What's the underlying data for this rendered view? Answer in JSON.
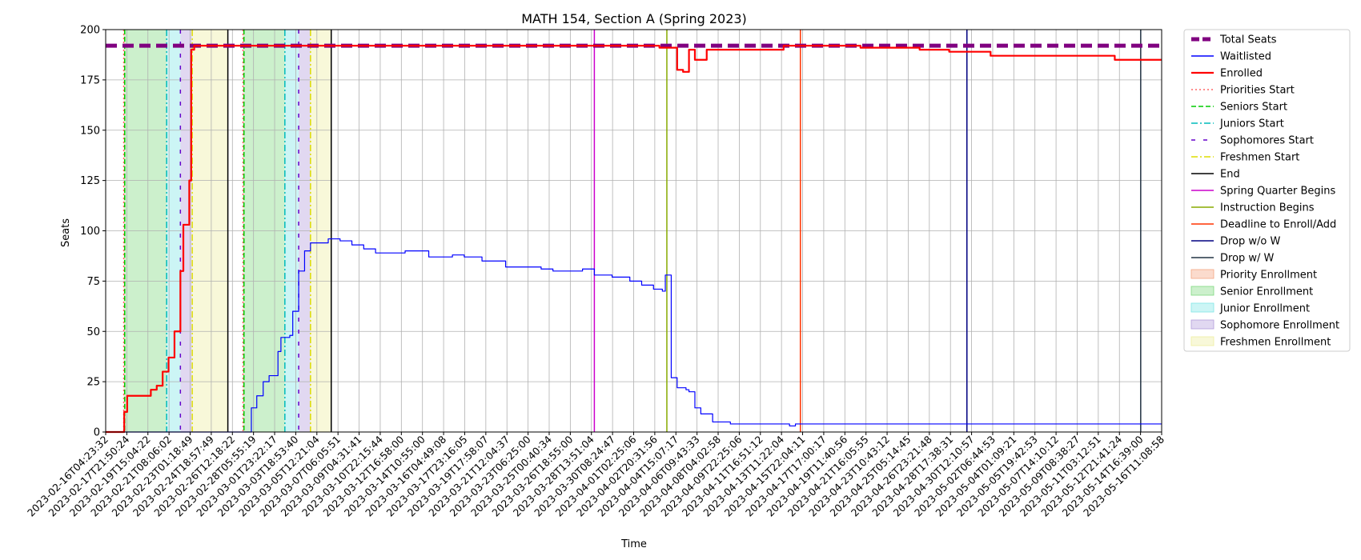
{
  "chart_data": {
    "type": "line",
    "title": "MATH 154, Section A (Spring 2023)",
    "xlabel": "Time",
    "ylabel": "Seats",
    "ylim": [
      0,
      200
    ],
    "yticks": [
      0,
      25,
      50,
      75,
      100,
      125,
      150,
      175,
      200
    ],
    "xlim": [
      "2023-02-16T04:23:32",
      "2023-05-16T11:08:58"
    ],
    "xtick_labels": [
      "2023-02-16T04:23:32",
      "2023-02-17T21:50:24",
      "2023-02-19T15:04:22",
      "2023-02-21T08:06:02",
      "2023-02-23T01:18:49",
      "2023-02-24T18:57:49",
      "2023-02-26T12:18:22",
      "2023-02-28T05:55:19",
      "2023-03-01T23:22:17",
      "2023-03-03T18:53:40",
      "2023-03-05T12:21:04",
      "2023-03-07T06:05:51",
      "2023-03-09T04:31:41",
      "2023-03-10T22:15:44",
      "2023-03-12T16:58:00",
      "2023-03-14T10:55:00",
      "2023-03-16T04:49:08",
      "2023-03-17T23:16:05",
      "2023-03-19T17:58:07",
      "2023-03-21T12:04:37",
      "2023-03-23T06:25:00",
      "2023-03-25T00:40:34",
      "2023-03-26T18:55:00",
      "2023-03-28T13:51:04",
      "2023-03-30T08:24:47",
      "2023-04-01T02:25:06",
      "2023-04-02T20:31:56",
      "2023-04-04T15:07:17",
      "2023-04-06T09:43:33",
      "2023-04-08T04:02:58",
      "2023-04-09T22:25:06",
      "2023-04-11T16:51:12",
      "2023-04-13T11:22:04",
      "2023-04-15T22:04:11",
      "2023-04-17T17:00:17",
      "2023-04-19T11:40:56",
      "2023-04-21T16:05:55",
      "2023-04-23T10:43:12",
      "2023-04-25T05:14:45",
      "2023-04-26T23:21:48",
      "2023-04-28T17:38:31",
      "2023-04-30T12:10:57",
      "2023-05-02T06:44:53",
      "2023-05-04T01:09:21",
      "2023-05-05T19:42:53",
      "2023-05-07T14:10:12",
      "2023-05-09T08:38:27",
      "2023-05-11T03:12:51",
      "2023-05-12T21:41:24",
      "2023-05-14T16:39:00",
      "2023-05-16T11:08:58"
    ],
    "grid": true,
    "legend_position": "outside-right",
    "series": [
      {
        "name": "Total Seats",
        "color": "#800080",
        "style": "dashed-thick",
        "x": [
          "2023-02-16T04:23:32",
          "2023-05-16T11:08:58"
        ],
        "values": [
          192,
          192
        ]
      },
      {
        "name": "Waitlisted",
        "color": "#0000ff",
        "style": "solid-thin",
        "x": [
          "2023-02-16T04:23:32",
          "2023-02-27T18:00:00",
          "2023-02-28T12:00:00",
          "2023-02-28T23:00:00",
          "2023-03-01T12:00:00",
          "2023-03-02T00:00:00",
          "2023-03-02T18:00:00",
          "2023-03-03T00:00:00",
          "2023-03-03T18:00:00",
          "2023-03-04T00:00:00",
          "2023-03-04T12:00:00",
          "2023-03-05T00:00:00",
          "2023-03-05T12:00:00",
          "2023-03-06T00:00:00",
          "2023-03-07T00:00:00",
          "2023-03-07T06:00:00",
          "2023-03-08T00:00:00",
          "2023-03-09T00:00:00",
          "2023-03-10T00:00:00",
          "2023-03-11T00:00:00",
          "2023-03-12T12:00:00",
          "2023-03-13T12:00:00",
          "2023-03-14T12:00:00",
          "2023-03-15T12:00:00",
          "2023-03-17T12:00:00",
          "2023-03-18T12:00:00",
          "2023-03-20T00:00:00",
          "2023-03-22T00:00:00",
          "2023-03-24T12:00:00",
          "2023-03-25T00:00:00",
          "2023-03-26T00:00:00",
          "2023-03-27T12:00:00",
          "2023-03-28T12:00:00",
          "2023-03-29T12:00:00",
          "2023-03-31T00:00:00",
          "2023-04-01T12:00:00",
          "2023-04-02T12:00:00",
          "2023-04-03T12:00:00",
          "2023-04-04T06:00:00",
          "2023-04-04T12:00:00",
          "2023-04-05T00:00:00",
          "2023-04-05T12:00:00",
          "2023-04-06T06:00:00",
          "2023-04-06T12:00:00",
          "2023-04-07T00:00:00",
          "2023-04-07T12:00:00",
          "2023-04-08T12:00:00",
          "2023-04-10T00:00:00",
          "2023-04-11T00:00:00",
          "2023-04-11T18:00:00",
          "2023-04-15T00:00:00",
          "2023-04-15T12:00:00",
          "2023-05-16T11:08:58"
        ],
        "values": [
          0,
          0,
          12,
          18,
          25,
          28,
          40,
          47,
          48,
          60,
          80,
          90,
          94,
          94,
          96,
          96,
          95,
          93,
          91,
          89,
          89,
          90,
          90,
          87,
          88,
          87,
          85,
          82,
          82,
          81,
          80,
          80,
          81,
          78,
          77,
          75,
          73,
          71,
          70,
          78,
          27,
          22,
          21,
          20,
          12,
          9,
          5,
          4,
          4,
          4,
          3,
          4,
          4
        ]
      },
      {
        "name": "Enrolled",
        "color": "#ff0000",
        "style": "solid-thick",
        "x": [
          "2023-02-16T04:23:32",
          "2023-02-17T12:00:00",
          "2023-02-17T18:00:00",
          "2023-02-18T00:00:00",
          "2023-02-19T00:00:00",
          "2023-02-20T00:00:00",
          "2023-02-20T12:00:00",
          "2023-02-21T00:00:00",
          "2023-02-21T12:00:00",
          "2023-02-22T00:00:00",
          "2023-02-22T12:00:00",
          "2023-02-22T18:00:00",
          "2023-02-23T00:00:00",
          "2023-02-23T06:00:00",
          "2023-02-23T10:00:00",
          "2023-02-23T16:00:00",
          "2023-02-24T00:00:00",
          "2023-04-03T00:00:00",
          "2023-04-04T00:00:00",
          "2023-04-05T12:00:00",
          "2023-04-06T00:00:00",
          "2023-04-06T12:00:00",
          "2023-04-07T00:00:00",
          "2023-04-08T00:00:00",
          "2023-04-14T12:00:00",
          "2023-04-21T00:00:00",
          "2023-04-26T00:00:00",
          "2023-04-28T12:00:00",
          "2023-05-02T00:00:00",
          "2023-05-12T00:00:00",
          "2023-05-12T12:00:00",
          "2023-05-16T11:08:58"
        ],
        "values": [
          0,
          0,
          10,
          18,
          18,
          21,
          23,
          30,
          37,
          50,
          80,
          103,
          103,
          125,
          190,
          192,
          192,
          192,
          191,
          180,
          179,
          190,
          185,
          190,
          192,
          191,
          190,
          189,
          187,
          187,
          185,
          185
        ]
      }
    ],
    "vlines": [
      {
        "name": "Priorities Start",
        "color": "#ff6666",
        "style": "dotted",
        "x": [
          "2023-02-17T17:00:00",
          "2023-02-27T19:00:00"
        ]
      },
      {
        "name": "Seniors Start",
        "color": "#00cc00",
        "style": "dashed",
        "x": [
          "2023-02-17T19:00:00",
          "2023-02-27T21:00:00"
        ]
      },
      {
        "name": "Juniors Start",
        "color": "#00bbbb",
        "style": "dashdot",
        "x": [
          "2023-02-21T08:06:02",
          "2023-03-03T08:00:00"
        ]
      },
      {
        "name": "Sophomores Start",
        "color": "#6600cc",
        "style": "dashdense",
        "x": [
          "2023-02-22T12:00:00",
          "2023-03-04T12:00:00"
        ]
      },
      {
        "name": "Freshmen Start",
        "color": "#dddd00",
        "style": "dashdot",
        "x": [
          "2023-02-23T12:00:00",
          "2023-03-05T12:00:00"
        ]
      },
      {
        "name": "End",
        "color": "#000000",
        "style": "solid",
        "x": [
          "2023-02-26T12:18:22",
          "2023-03-07T06:05:51"
        ]
      },
      {
        "name": "Spring Quarter Begins",
        "color": "#cc00cc",
        "style": "solid",
        "x": [
          "2023-03-29T12:00:00"
        ]
      },
      {
        "name": "Instruction Begins",
        "color": "#88aa00",
        "style": "solid",
        "x": [
          "2023-04-04T15:07:17"
        ]
      },
      {
        "name": "Deadline to Enroll/Add",
        "color": "#ff3300",
        "style": "solid",
        "x": [
          "2023-04-15T22:04:11"
        ]
      },
      {
        "name": "Drop w/o W",
        "color": "#000080",
        "style": "solid",
        "x": [
          "2023-04-30T00:00:00"
        ]
      },
      {
        "name": "Drop w/ W",
        "color": "#223344",
        "style": "solid",
        "x": [
          "2023-05-14T16:39:00"
        ]
      }
    ],
    "spans": [
      {
        "name": "Priority Enrollment",
        "color": "#f4a582",
        "ranges": [
          [
            "2023-02-17T17:00:00",
            "2023-02-17T19:00:00"
          ],
          [
            "2023-02-27T19:00:00",
            "2023-02-27T21:00:00"
          ]
        ]
      },
      {
        "name": "Senior Enrollment",
        "color": "#7fd97f",
        "ranges": [
          [
            "2023-02-17T19:00:00",
            "2023-02-21T08:06:02"
          ],
          [
            "2023-02-27T21:00:00",
            "2023-03-03T08:00:00"
          ]
        ]
      },
      {
        "name": "Junior Enrollment",
        "color": "#80e6e6",
        "ranges": [
          [
            "2023-02-21T08:06:02",
            "2023-02-22T12:00:00"
          ],
          [
            "2023-03-03T08:00:00",
            "2023-03-04T12:00:00"
          ]
        ]
      },
      {
        "name": "Sophomore Enrollment",
        "color": "#b39ddb",
        "ranges": [
          [
            "2023-02-22T12:00:00",
            "2023-02-23T12:00:00"
          ],
          [
            "2023-03-04T12:00:00",
            "2023-03-05T12:00:00"
          ]
        ]
      },
      {
        "name": "Freshmen Enrollment",
        "color": "#eeeea0",
        "ranges": [
          [
            "2023-02-23T12:00:00",
            "2023-02-26T12:18:22"
          ],
          [
            "2023-03-05T12:00:00",
            "2023-03-07T06:05:51"
          ]
        ]
      }
    ],
    "legend": [
      "Total Seats",
      "Waitlisted",
      "Enrolled",
      "Priorities Start",
      "Seniors Start",
      "Juniors Start",
      "Sophomores Start",
      "Freshmen Start",
      "End",
      "Spring Quarter Begins",
      "Instruction Begins",
      "Deadline to Enroll/Add",
      "Drop w/o W",
      "Drop w/ W",
      "Priority Enrollment",
      "Senior Enrollment",
      "Junior Enrollment",
      "Sophomore Enrollment",
      "Freshmen Enrollment"
    ]
  }
}
